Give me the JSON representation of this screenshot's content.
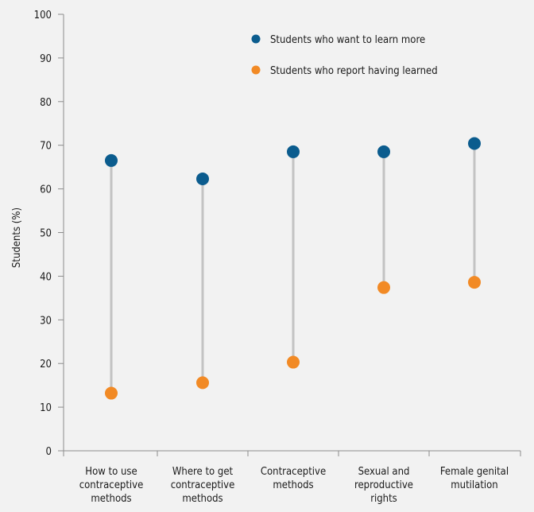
{
  "chart_data": {
    "type": "dumbbell",
    "ylabel": "Students (%)",
    "ylim": [
      0,
      100
    ],
    "yticks": [
      0,
      10,
      20,
      30,
      40,
      50,
      60,
      70,
      80,
      90,
      100
    ],
    "categories": [
      [
        "How to use",
        "contraceptive",
        "methods"
      ],
      [
        "Where to get",
        "contraceptive",
        "methods"
      ],
      [
        "Contraceptive",
        "methods"
      ],
      [
        "Sexual and",
        "reproductive",
        "rights"
      ],
      [
        "Female genital",
        "mutilation"
      ]
    ],
    "series": [
      {
        "name": "Students who want to learn more",
        "color": "#0b5c8e",
        "values": [
          66.5,
          62.3,
          68.5,
          68.5,
          70.4
        ]
      },
      {
        "name": "Students who report having learned",
        "color": "#f28a25",
        "values": [
          13.2,
          15.6,
          20.3,
          37.4,
          38.6
        ]
      }
    ],
    "legend_position": "top-right",
    "grid": false,
    "connector_color": "#c3c3c3"
  }
}
